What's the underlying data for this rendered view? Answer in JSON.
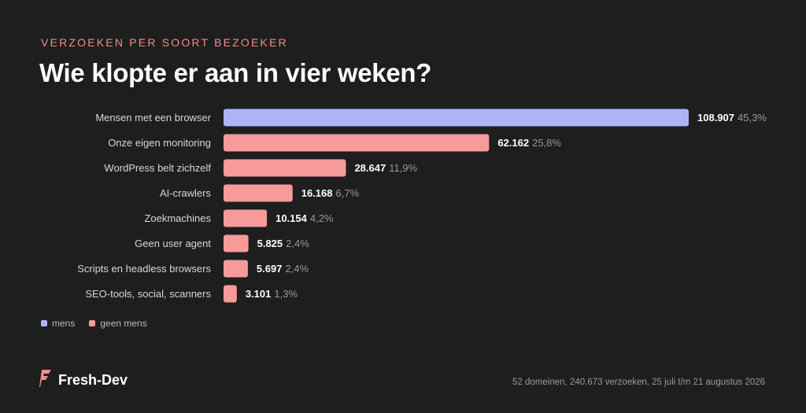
{
  "header": {
    "eyebrow": "VERZOEKEN PER SOORT BEZOEKER",
    "title": "Wie klopte er aan in vier weken?"
  },
  "chart_data": {
    "type": "bar",
    "orientation": "horizontal",
    "categories": [
      "Mensen met een browser",
      "Onze eigen monitoring",
      "WordPress belt zichzelf",
      "AI-crawlers",
      "Zoekmachines",
      "Geen user agent",
      "Scripts en headless browsers",
      "SEO-tools, social, scanners"
    ],
    "values": [
      108907,
      62162,
      28647,
      16168,
      10154,
      5825,
      5697,
      3101
    ],
    "value_labels": [
      "108.907",
      "62.162",
      "28.647",
      "16.168",
      "10.154",
      "5.825",
      "5.697",
      "3.101"
    ],
    "percent_labels": [
      "45,3%",
      "25,8%",
      "11,9%",
      "6,7%",
      "4,2%",
      "2,4%",
      "2,4%",
      "1,3%"
    ],
    "group": [
      "mens",
      "geen mens",
      "geen mens",
      "geen mens",
      "geen mens",
      "geen mens",
      "geen mens",
      "geen mens"
    ],
    "xlim": [
      0,
      108907
    ],
    "grid": false
  },
  "legend": {
    "items": [
      {
        "label": "mens",
        "color": "#aeb4f5"
      },
      {
        "label": "geen mens",
        "color": "#f79a9a"
      }
    ]
  },
  "colors": {
    "mens": "#aeb4f5",
    "geen mens": "#f79a9a",
    "accent": "#f08c8c"
  },
  "footer": {
    "brand": "Fresh-Dev",
    "brand_icon": "fresh-dev-logo-icon",
    "note": "52 domeinen, 240.673 verzoeken, 25 juli t/m 21 augustus 2026"
  }
}
